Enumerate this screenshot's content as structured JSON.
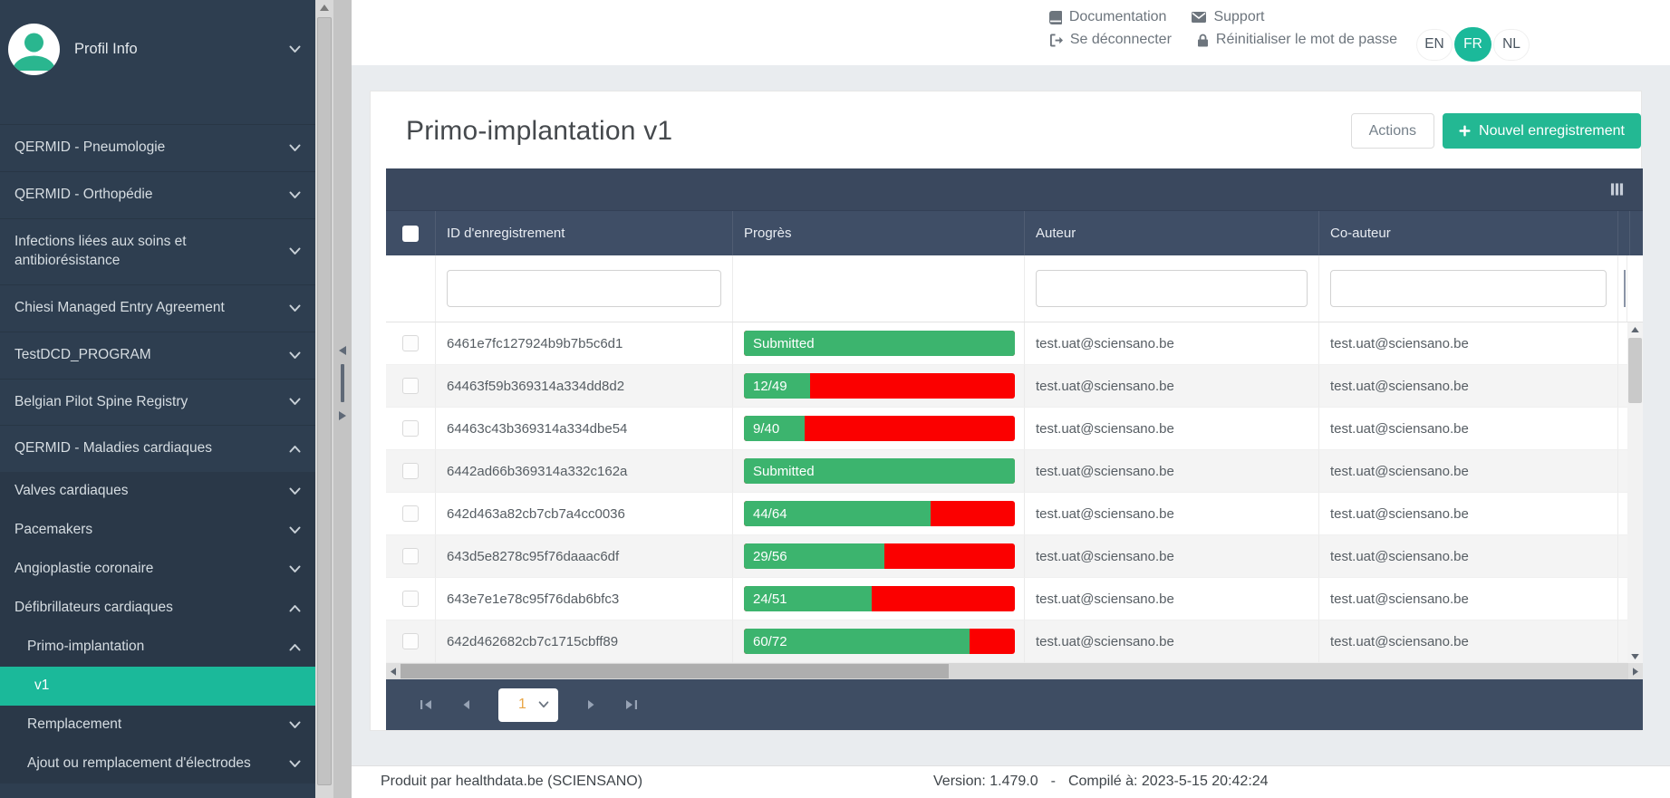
{
  "colors": {
    "accent_green": "#1bb99a",
    "button_green": "#23b893",
    "progress_green": "#3cb46e",
    "progress_red": "#fb0000",
    "sidebar_bg": "#2e3e50",
    "table_header_bg": "#3f4e66"
  },
  "sidebar": {
    "profile_label": "Profil Info",
    "items": [
      {
        "label": "QERMID - Pneumologie",
        "chevron": "down",
        "level": 0,
        "active": false
      },
      {
        "label": "QERMID - Orthopédie",
        "chevron": "down",
        "level": 0,
        "active": false
      },
      {
        "label": "Infections liées aux soins et antibiorésistance",
        "chevron": "down",
        "level": 0,
        "active": false
      },
      {
        "label": "Chiesi Managed Entry Agreement",
        "chevron": "down",
        "level": 0,
        "active": false
      },
      {
        "label": "TestDCD_PROGRAM",
        "chevron": "down",
        "level": 0,
        "active": false
      },
      {
        "label": "Belgian Pilot Spine Registry",
        "chevron": "down",
        "level": 0,
        "active": false
      },
      {
        "label": "QERMID - Maladies cardiaques",
        "chevron": "up",
        "level": 0,
        "active": false
      },
      {
        "label": "Valves cardiaques",
        "chevron": "down",
        "level": 1,
        "active": false
      },
      {
        "label": "Pacemakers",
        "chevron": "down",
        "level": 1,
        "active": false
      },
      {
        "label": "Angioplastie coronaire",
        "chevron": "down",
        "level": 1,
        "active": false
      },
      {
        "label": "Défibrillateurs cardiaques",
        "chevron": "up",
        "level": 1,
        "active": false
      },
      {
        "label": "Primo-implantation",
        "chevron": "up",
        "level": 2,
        "active": false
      },
      {
        "label": "v1",
        "chevron": "none",
        "level": 3,
        "active": true
      },
      {
        "label": "Remplacement",
        "chevron": "down",
        "level": 2,
        "active": false
      },
      {
        "label": "Ajout ou remplacement d'électrodes",
        "chevron": "down",
        "level": 2,
        "active": false
      }
    ]
  },
  "topbar": {
    "links_row1": [
      {
        "icon": "book-icon",
        "label": "Documentation"
      },
      {
        "icon": "envelope-icon",
        "label": "Support"
      }
    ],
    "links_row2": [
      {
        "icon": "signout-icon",
        "label": "Se déconnecter"
      },
      {
        "icon": "lock-icon",
        "label": "Réinitialiser le mot de passe"
      }
    ],
    "languages": [
      {
        "code": "EN",
        "active": false
      },
      {
        "code": "FR",
        "active": true
      },
      {
        "code": "NL",
        "active": false
      }
    ]
  },
  "page": {
    "title": "Primo-implantation v1",
    "actions_label": "Actions",
    "new_record_label": "Nouvel enregistrement"
  },
  "table": {
    "columns": {
      "id": "ID d'enregistrement",
      "progress": "Progrès",
      "author": "Auteur",
      "coauthor": "Co-auteur"
    },
    "rows": [
      {
        "id": "6461e7fc127924b9b7b5c6d1",
        "progress_label": "Submitted",
        "progress_pct": 100,
        "author": "test.uat@sciensano.be",
        "coauthor": "test.uat@sciensano.be"
      },
      {
        "id": "64463f59b369314a334dd8d2",
        "progress_label": "12/49",
        "progress_pct": 24.5,
        "author": "test.uat@sciensano.be",
        "coauthor": "test.uat@sciensano.be"
      },
      {
        "id": "64463c43b369314a334dbe54",
        "progress_label": "9/40",
        "progress_pct": 22.5,
        "author": "test.uat@sciensano.be",
        "coauthor": "test.uat@sciensano.be"
      },
      {
        "id": "6442ad66b369314a332c162a",
        "progress_label": "Submitted",
        "progress_pct": 100,
        "author": "test.uat@sciensano.be",
        "coauthor": "test.uat@sciensano.be"
      },
      {
        "id": "642d463a82cb7cb7a4cc0036",
        "progress_label": "44/64",
        "progress_pct": 68.8,
        "author": "test.uat@sciensano.be",
        "coauthor": "test.uat@sciensano.be"
      },
      {
        "id": "643d5e8278c95f76daaac6df",
        "progress_label": "29/56",
        "progress_pct": 51.8,
        "author": "test.uat@sciensano.be",
        "coauthor": "test.uat@sciensano.be"
      },
      {
        "id": "643e7e1e78c95f76dab6bfc3",
        "progress_label": "24/51",
        "progress_pct": 47.1,
        "author": "test.uat@sciensano.be",
        "coauthor": "test.uat@sciensano.be"
      },
      {
        "id": "642d462682cb7c1715cbff89",
        "progress_label": "60/72",
        "progress_pct": 83.3,
        "author": "test.uat@sciensano.be",
        "coauthor": "test.uat@sciensano.be"
      }
    ]
  },
  "pagination": {
    "current_page": "1"
  },
  "footer": {
    "produced_by": "Produit par healthdata.be (SCIENSANO)",
    "version_text": "Version: 1.479.0",
    "separator": "-",
    "compiled_text": "Compilé à: 2023-5-15 20:42:24"
  }
}
